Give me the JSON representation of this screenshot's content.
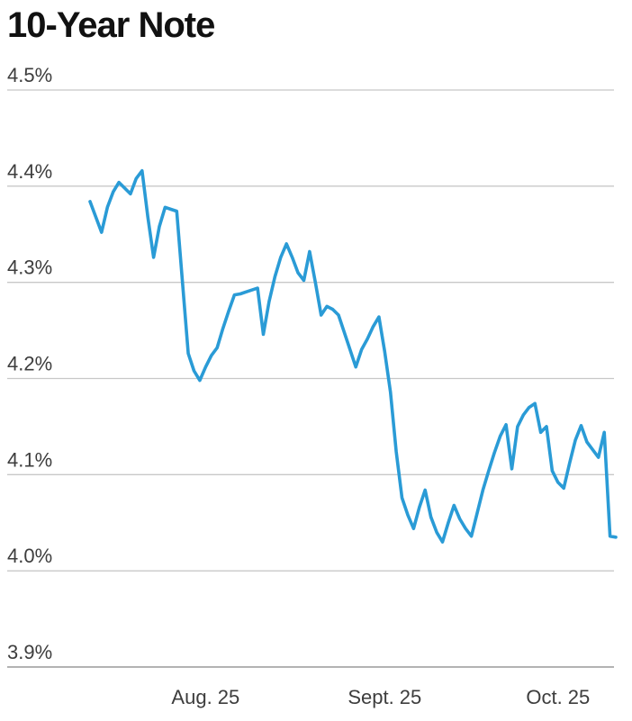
{
  "chart_data": {
    "type": "line",
    "title": "10-Year Note",
    "xlabel": "",
    "ylabel": "",
    "y_ticks": [
      "4.5%",
      "4.4%",
      "4.3%",
      "4.2%",
      "4.1%",
      "4.0%",
      "3.9%"
    ],
    "y_tick_values": [
      4.5,
      4.4,
      4.3,
      4.2,
      4.1,
      4.0,
      3.9
    ],
    "ylim": [
      3.9,
      4.5
    ],
    "x_ticks": [
      "Aug. 25",
      "Sept. 25",
      "Oct. 25"
    ],
    "x_tick_dates": [
      "2025-08-25",
      "2025-09-25",
      "2025-10-25"
    ],
    "grid": true,
    "colors": {
      "line": "#2a9bd6",
      "grid": "#c8c8c8",
      "text": "#3d3d3d",
      "title": "#111111"
    },
    "series": [
      {
        "x": [
          "2025-08-05",
          "2025-08-06",
          "2025-08-07",
          "2025-08-08",
          "2025-08-09",
          "2025-08-10",
          "2025-08-11",
          "2025-08-12",
          "2025-08-13",
          "2025-08-14",
          "2025-08-15",
          "2025-08-16",
          "2025-08-17",
          "2025-08-18",
          "2025-08-19",
          "2025-08-20",
          "2025-08-21",
          "2025-08-22",
          "2025-08-23",
          "2025-08-24",
          "2025-08-25",
          "2025-08-26",
          "2025-08-27",
          "2025-08-28",
          "2025-08-29",
          "2025-08-30",
          "2025-08-31",
          "2025-09-01",
          "2025-09-02",
          "2025-09-03",
          "2025-09-04",
          "2025-09-05",
          "2025-09-06",
          "2025-09-07",
          "2025-09-08",
          "2025-09-09",
          "2025-09-10",
          "2025-09-11",
          "2025-09-12",
          "2025-09-13",
          "2025-09-14",
          "2025-09-15",
          "2025-09-16",
          "2025-09-17",
          "2025-09-18",
          "2025-09-19",
          "2025-09-20",
          "2025-09-21",
          "2025-09-22",
          "2025-09-23",
          "2025-09-24",
          "2025-09-25",
          "2025-09-26",
          "2025-09-27",
          "2025-09-28",
          "2025-09-29",
          "2025-09-30",
          "2025-10-01",
          "2025-10-02",
          "2025-10-03",
          "2025-10-04",
          "2025-10-05",
          "2025-10-06",
          "2025-10-07",
          "2025-10-08",
          "2025-10-09",
          "2025-10-10",
          "2025-10-11",
          "2025-10-12",
          "2025-10-13",
          "2025-10-14",
          "2025-10-15",
          "2025-10-16",
          "2025-10-17",
          "2025-10-18",
          "2025-10-19",
          "2025-10-20",
          "2025-10-21",
          "2025-10-22",
          "2025-10-23",
          "2025-10-24",
          "2025-10-25",
          "2025-10-26",
          "2025-10-27",
          "2025-10-28",
          "2025-10-29",
          "2025-10-30",
          "2025-10-31",
          "2025-11-01",
          "2025-11-02",
          "2025-11-03",
          "2025-11-04"
        ],
        "values": [
          4.384,
          4.368,
          4.352,
          4.378,
          4.394,
          4.404,
          4.398,
          4.392,
          4.408,
          4.416,
          4.368,
          4.326,
          4.358,
          4.378,
          4.376,
          4.374,
          4.3,
          4.226,
          4.208,
          4.198,
          4.212,
          4.224,
          4.232,
          4.252,
          4.27,
          4.287,
          4.288,
          4.29,
          4.292,
          4.294,
          4.246,
          4.28,
          4.306,
          4.326,
          4.34,
          4.326,
          4.31,
          4.302,
          4.332,
          4.3,
          4.266,
          4.275,
          4.272,
          4.266,
          4.248,
          4.23,
          4.212,
          4.23,
          4.241,
          4.254,
          4.264,
          4.228,
          4.186,
          4.124,
          4.076,
          4.058,
          4.044,
          4.066,
          4.084,
          4.056,
          4.04,
          4.03,
          4.05,
          4.068,
          4.054,
          4.044,
          4.036,
          4.06,
          4.084,
          4.104,
          4.123,
          4.14,
          4.152,
          4.106,
          4.15,
          4.162,
          4.17,
          4.174,
          4.144,
          4.15,
          4.104,
          4.092,
          4.086,
          4.112,
          4.136,
          4.151,
          4.134,
          4.126,
          4.118,
          4.144,
          4.036,
          4.035
        ]
      }
    ]
  }
}
